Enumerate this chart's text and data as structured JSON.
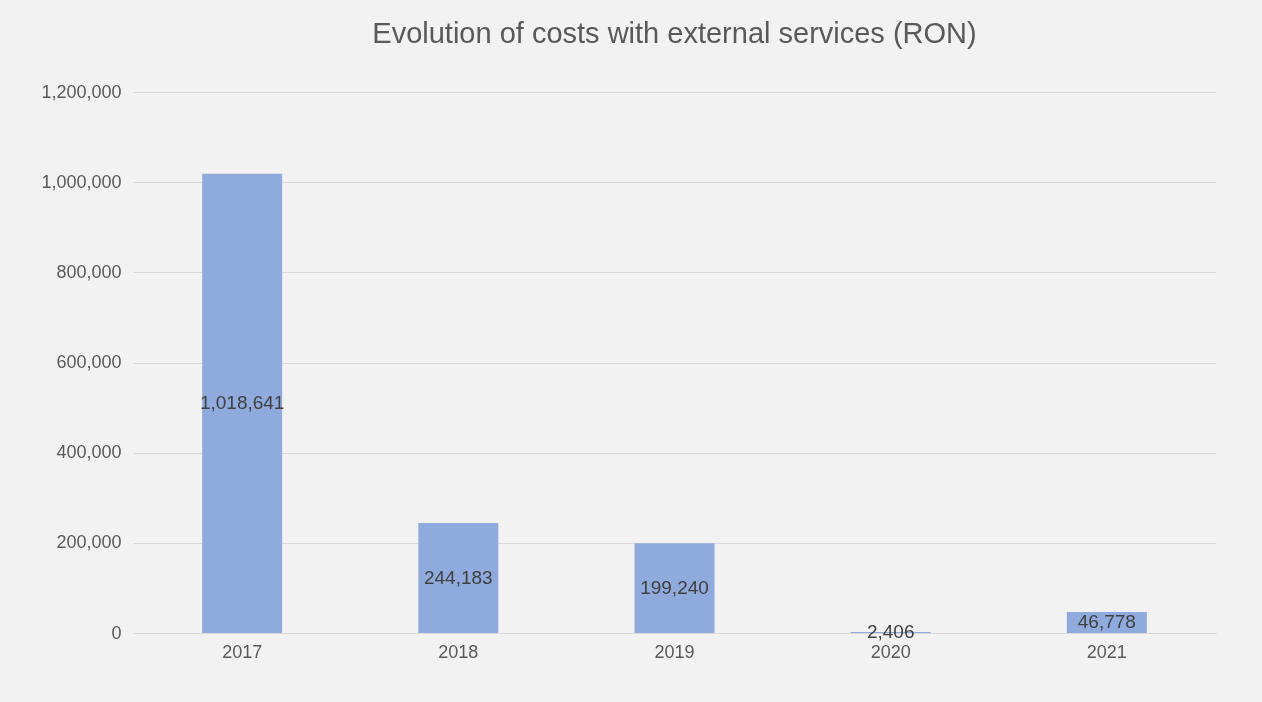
{
  "chart_data": {
    "type": "bar",
    "title": "Evolution of costs with external services (RON)",
    "categories": [
      "2017",
      "2018",
      "2019",
      "2020",
      "2021"
    ],
    "values": [
      1018641,
      244183,
      199240,
      2406,
      46778
    ],
    "value_labels": [
      "1,018,641",
      "244,183",
      "199,240",
      "2,406",
      "46,778"
    ],
    "color": "#8faadc",
    "ylim": [
      0,
      1200000
    ],
    "yticks": [
      0,
      {
        "value": 200000,
        "label": "200,000"
      },
      {
        "value": 400000,
        "label": "400,000"
      },
      {
        "value": 600000,
        "label": "600,000"
      },
      {
        "value": 800000,
        "label": "800,000"
      },
      {
        "value": 1000000,
        "label": "1,000,000"
      },
      {
        "value": 1200000,
        "label": "1,200,000"
      }
    ],
    "grid": "y"
  }
}
